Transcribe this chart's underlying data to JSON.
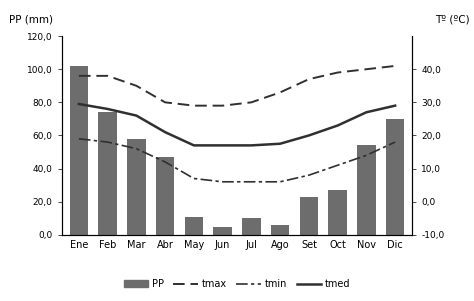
{
  "months": [
    "Ene",
    "Feb",
    "Mar",
    "Abr",
    "May",
    "Jun",
    "Jul",
    "Ago",
    "Set",
    "Oct",
    "Nov",
    "Dic"
  ],
  "pp": [
    102,
    74,
    58,
    47,
    11,
    5,
    10,
    6,
    23,
    27,
    54,
    70
  ],
  "tmax": [
    38,
    38,
    35,
    30,
    29,
    29,
    30,
    33,
    37,
    39,
    40,
    41
  ],
  "tmin": [
    19,
    18,
    16,
    12,
    7,
    6,
    6,
    6,
    8,
    11,
    14,
    18
  ],
  "tmed": [
    29.5,
    28,
    26,
    21,
    17,
    17,
    17,
    17.5,
    20,
    23,
    27,
    29
  ],
  "bar_color": "#6d6d6d",
  "line_color": "#303030",
  "ylabel_left": "PP (mm)",
  "ylabel_right": "Tº (ºC)",
  "ylim_left": [
    0,
    120
  ],
  "ylim_right": [
    -10,
    50
  ],
  "yticks_left": [
    0,
    20,
    40,
    60,
    80,
    100,
    120
  ],
  "ytick_labels_left": [
    "0,0",
    "20,0",
    "40,0",
    "60,0",
    "80,0",
    "100,0",
    "120,0"
  ],
  "yticks_right": [
    -10,
    0,
    10,
    20,
    30,
    40
  ],
  "ytick_labels_right": [
    "-10,0",
    "0,0",
    "10,0",
    "20,0",
    "30,0",
    "40,0"
  ],
  "legend_labels": [
    "PP",
    "tmax",
    "tmin",
    "tmed"
  ]
}
